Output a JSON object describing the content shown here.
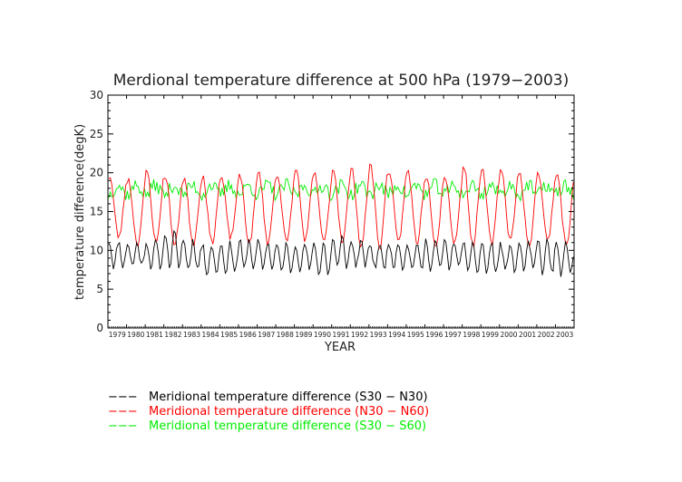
{
  "chart_data": {
    "type": "line",
    "title": "Merdional temperature difference at 500 hPa (1979−2003)",
    "xlabel": "YEAR",
    "ylabel": "temperature difference(degK)",
    "ylim": [
      0,
      30
    ],
    "yticks": [
      0,
      5,
      10,
      15,
      20,
      25,
      30
    ],
    "xlim": [
      1979,
      2004
    ],
    "year_labels": [
      "1979",
      "1980",
      "1981",
      "1982",
      "1983",
      "1984",
      "1985",
      "1986",
      "1987",
      "1988",
      "1989",
      "1990",
      "1991",
      "1992",
      "1993",
      "1994",
      "1995",
      "1996",
      "1997",
      "1998",
      "1999",
      "2000",
      "2001",
      "2002",
      "2003"
    ],
    "grid": false,
    "legend_position": "bottom-left (below plot)",
    "frequency": "monthly",
    "start_year": 1979,
    "series": [
      {
        "name": "Meridional temperature difference (S30 − N30)",
        "color": "#000000",
        "legend_marker": "−−−",
        "annual_peaks": [
          11.3,
          11.0,
          11.2,
          12.5,
          11.4,
          10.8,
          11.0,
          11.5,
          11.2,
          10.9,
          11.0,
          11.3,
          11.8,
          11.2,
          11.0,
          11.3,
          11.0,
          11.4,
          11.4,
          11.5,
          11.1,
          11.0,
          11.0,
          11.5,
          11.0
        ],
        "annual_troughs": [
          7.8,
          8.0,
          7.8,
          7.8,
          7.5,
          7.0,
          7.2,
          7.5,
          7.6,
          7.2,
          7.4,
          6.7,
          7.8,
          8.0,
          7.6,
          7.6,
          7.5,
          7.5,
          7.6,
          6.8,
          7.0,
          7.2,
          7.5,
          7.0,
          6.8
        ]
      },
      {
        "name": "Meridional temperature difference (N30 − N60)",
        "color": "#ff0000",
        "legend_marker": "−−−",
        "annual_peaks": [
          19.6,
          19.2,
          20.3,
          19.6,
          19.3,
          19.6,
          19.4,
          19.6,
          20.1,
          19.8,
          20.5,
          19.8,
          20.5,
          20.4,
          21.0,
          20.3,
          20.2,
          19.6,
          19.6,
          21.0,
          20.2,
          20.6,
          19.8,
          20.0,
          20.0
        ],
        "annual_troughs": [
          11.7,
          10.8,
          11.0,
          10.6,
          10.8,
          11.0,
          11.6,
          10.8,
          11.0,
          11.0,
          11.3,
          11.0,
          11.2,
          10.4,
          10.4,
          11.0,
          11.0,
          10.7,
          11.0,
          10.6,
          10.8,
          11.3,
          10.4,
          11.2,
          10.6
        ]
      },
      {
        "name": "Meridional temperature difference (S30 − S60)",
        "color": "#00ee00",
        "legend_marker": "−−−",
        "mean": 17.8,
        "range": [
          15.7,
          20.2
        ]
      }
    ]
  }
}
